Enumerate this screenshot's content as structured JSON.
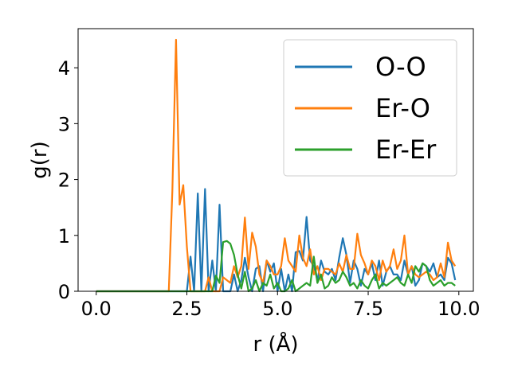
{
  "chart_data": {
    "type": "line",
    "xlabel": "r (Å)",
    "ylabel": "g(r)",
    "xlim": [
      -0.5,
      10.4
    ],
    "ylim": [
      0,
      4.7
    ],
    "xticks": [
      0.0,
      2.5,
      5.0,
      7.5,
      10.0
    ],
    "xtick_labels": [
      "0.0",
      "2.5",
      "5.0",
      "7.5",
      "10.0"
    ],
    "yticks": [
      0,
      1,
      2,
      3,
      4
    ],
    "ytick_labels": [
      "0",
      "1",
      "2",
      "3",
      "4"
    ],
    "grid": false,
    "legend_position": "top-right",
    "series": [
      {
        "name": "O-O",
        "color": "#1f77b4",
        "x": [
          0.0,
          2.5,
          2.6,
          2.7,
          2.8,
          2.9,
          3.0,
          3.1,
          3.2,
          3.3,
          3.4,
          3.5,
          3.6,
          3.7,
          3.8,
          3.9,
          4.0,
          4.1,
          4.2,
          4.3,
          4.4,
          4.5,
          4.6,
          4.7,
          4.8,
          4.9,
          5.0,
          5.1,
          5.2,
          5.3,
          5.4,
          5.5,
          5.6,
          5.7,
          5.8,
          5.9,
          6.0,
          6.1,
          6.2,
          6.3,
          6.4,
          6.5,
          6.6,
          6.7,
          6.8,
          6.9,
          7.0,
          7.1,
          7.2,
          7.3,
          7.4,
          7.5,
          7.6,
          7.7,
          7.8,
          7.9,
          8.0,
          8.1,
          8.2,
          8.3,
          8.4,
          8.5,
          8.6,
          8.7,
          8.8,
          8.9,
          9.0,
          9.1,
          9.2,
          9.3,
          9.4,
          9.5,
          9.6,
          9.7,
          9.8,
          9.9
        ],
        "y": [
          0.0,
          0.0,
          0.62,
          0.0,
          1.75,
          0.0,
          1.83,
          0.0,
          0.55,
          0.0,
          1.55,
          0.0,
          0.0,
          0.0,
          0.3,
          0.0,
          0.2,
          0.6,
          0.25,
          0.0,
          0.4,
          0.45,
          0.0,
          0.55,
          0.35,
          0.5,
          0.0,
          0.4,
          0.0,
          0.3,
          0.0,
          0.7,
          0.72,
          0.55,
          1.33,
          0.55,
          0.45,
          0.2,
          0.55,
          0.35,
          0.3,
          0.4,
          0.2,
          0.6,
          0.95,
          0.65,
          0.15,
          0.55,
          0.4,
          0.1,
          0.4,
          0.3,
          0.5,
          0.2,
          0.55,
          0.1,
          0.35,
          0.45,
          0.3,
          0.3,
          0.2,
          0.55,
          0.3,
          0.45,
          0.1,
          0.2,
          0.5,
          0.45,
          0.35,
          0.5,
          0.25,
          0.3,
          0.2,
          0.6,
          0.5,
          0.2
        ]
      },
      {
        "name": "Er-O",
        "color": "#ff7f0e",
        "x": [
          0.0,
          2.0,
          2.1,
          2.2,
          2.3,
          2.4,
          2.5,
          2.6,
          2.7,
          2.8,
          2.9,
          3.0,
          3.1,
          3.2,
          3.3,
          3.4,
          3.5,
          3.6,
          3.7,
          3.8,
          3.9,
          4.0,
          4.1,
          4.2,
          4.3,
          4.4,
          4.5,
          4.6,
          4.7,
          4.8,
          4.9,
          5.0,
          5.1,
          5.2,
          5.3,
          5.4,
          5.5,
          5.6,
          5.7,
          5.8,
          5.9,
          6.0,
          6.1,
          6.2,
          6.3,
          6.4,
          6.5,
          6.6,
          6.7,
          6.8,
          6.9,
          7.0,
          7.1,
          7.2,
          7.3,
          7.4,
          7.5,
          7.6,
          7.7,
          7.8,
          7.9,
          8.0,
          8.1,
          8.2,
          8.3,
          8.4,
          8.5,
          8.6,
          8.7,
          8.8,
          8.9,
          9.0,
          9.1,
          9.2,
          9.3,
          9.4,
          9.5,
          9.6,
          9.7,
          9.8,
          9.9
        ],
        "y": [
          0.0,
          0.0,
          1.8,
          4.5,
          1.55,
          1.9,
          0.8,
          0.0,
          0.0,
          0.0,
          0.0,
          0.0,
          0.25,
          0.0,
          0.0,
          0.0,
          0.25,
          0.2,
          0.15,
          0.45,
          0.25,
          0.45,
          1.32,
          0.4,
          1.05,
          0.8,
          0.3,
          0.15,
          0.55,
          0.45,
          0.3,
          0.3,
          0.45,
          0.95,
          0.55,
          0.45,
          0.35,
          1.0,
          0.6,
          0.45,
          0.75,
          0.3,
          0.45,
          0.2,
          0.4,
          0.4,
          0.35,
          0.3,
          0.5,
          0.35,
          0.65,
          0.4,
          0.4,
          1.03,
          0.65,
          0.5,
          0.3,
          0.55,
          0.45,
          0.2,
          0.55,
          0.35,
          0.45,
          0.75,
          0.4,
          0.55,
          1.0,
          0.3,
          0.45,
          0.3,
          0.25,
          0.3,
          0.35,
          0.3,
          0.2,
          0.25,
          0.5,
          0.25,
          0.87,
          0.55,
          0.45
        ]
      },
      {
        "name": "Er-Er",
        "color": "#2ca02c",
        "x": [
          0.0,
          3.2,
          3.3,
          3.4,
          3.5,
          3.6,
          3.7,
          3.8,
          3.9,
          4.0,
          4.1,
          4.2,
          4.3,
          4.4,
          4.5,
          4.6,
          4.7,
          4.8,
          4.9,
          5.0,
          5.1,
          5.2,
          5.3,
          5.4,
          5.5,
          5.6,
          5.7,
          5.8,
          5.9,
          6.0,
          6.1,
          6.2,
          6.3,
          6.4,
          6.5,
          6.6,
          6.7,
          6.8,
          6.9,
          7.0,
          7.1,
          7.2,
          7.3,
          7.4,
          7.5,
          7.6,
          7.7,
          7.8,
          7.9,
          8.0,
          8.1,
          8.2,
          8.3,
          8.4,
          8.5,
          8.6,
          8.7,
          8.8,
          8.9,
          9.0,
          9.1,
          9.2,
          9.3,
          9.4,
          9.5,
          9.6,
          9.7,
          9.8,
          9.9
        ],
        "y": [
          0.0,
          0.0,
          0.28,
          0.15,
          0.88,
          0.9,
          0.85,
          0.65,
          0.3,
          0.05,
          0.35,
          0.0,
          0.05,
          0.2,
          0.0,
          0.15,
          0.1,
          0.3,
          0.05,
          0.15,
          0.0,
          0.0,
          0.05,
          0.2,
          0.0,
          0.05,
          0.1,
          0.15,
          0.1,
          0.62,
          0.15,
          0.3,
          0.05,
          0.1,
          0.25,
          0.15,
          0.2,
          0.35,
          0.25,
          0.1,
          0.15,
          0.05,
          0.2,
          0.1,
          0.05,
          0.2,
          0.3,
          0.05,
          0.15,
          0.1,
          0.15,
          0.2,
          0.25,
          0.15,
          0.1,
          0.3,
          0.15,
          0.45,
          0.35,
          0.5,
          0.45,
          0.2,
          0.1,
          0.15,
          0.2,
          0.1,
          0.15,
          0.15,
          0.1
        ]
      }
    ]
  }
}
